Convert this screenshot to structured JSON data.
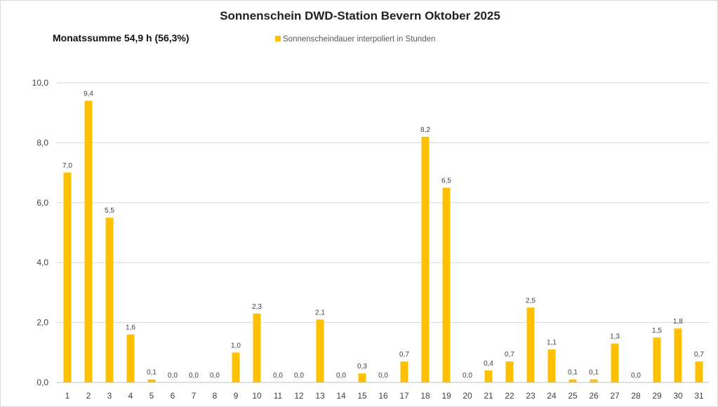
{
  "chart_data": {
    "type": "bar",
    "title": "Sonnenschein DWD-Station Bevern Oktober 2025",
    "subtitle": "Monatssumme 54,9 h (56,3%)",
    "series": [
      {
        "name": "Sonnenscheindauer interpoliert in Stunden",
        "color": "#ffc000",
        "values": [
          7.0,
          9.4,
          5.5,
          1.6,
          0.1,
          0.0,
          0.0,
          0.0,
          1.0,
          2.3,
          0.0,
          0.0,
          2.1,
          0.0,
          0.3,
          0.0,
          0.7,
          8.2,
          6.5,
          0.0,
          0.4,
          0.7,
          2.5,
          1.1,
          0.1,
          0.1,
          1.3,
          0.0,
          1.5,
          1.8,
          0.7
        ],
        "labels": [
          "7,0",
          "9,4",
          "5,5",
          "1,6",
          "0,1",
          "0,0",
          "0,0",
          "0,0",
          "1,0",
          "2,3",
          "0,0",
          "0,0",
          "2,1",
          "0,0",
          "0,3",
          "0,0",
          "0,7",
          "8,2",
          "6,5",
          "0,0",
          "0,4",
          "0,7",
          "2,5",
          "1,1",
          "0,1",
          "0,1",
          "1,3",
          "0,0",
          "1,5",
          "1,8",
          "0,7"
        ]
      }
    ],
    "categories": [
      "1",
      "2",
      "3",
      "4",
      "5",
      "6",
      "7",
      "8",
      "9",
      "10",
      "11",
      "12",
      "13",
      "14",
      "15",
      "16",
      "17",
      "18",
      "19",
      "20",
      "21",
      "22",
      "23",
      "24",
      "25",
      "26",
      "27",
      "28",
      "29",
      "30",
      "31"
    ],
    "ylim": [
      0,
      10
    ],
    "yticks": [
      0,
      2,
      4,
      6,
      8,
      10
    ],
    "ytick_labels": [
      "0,0",
      "2,0",
      "4,0",
      "6,0",
      "8,0",
      "10,0"
    ],
    "grid": true,
    "legend_position": "top-center"
  }
}
